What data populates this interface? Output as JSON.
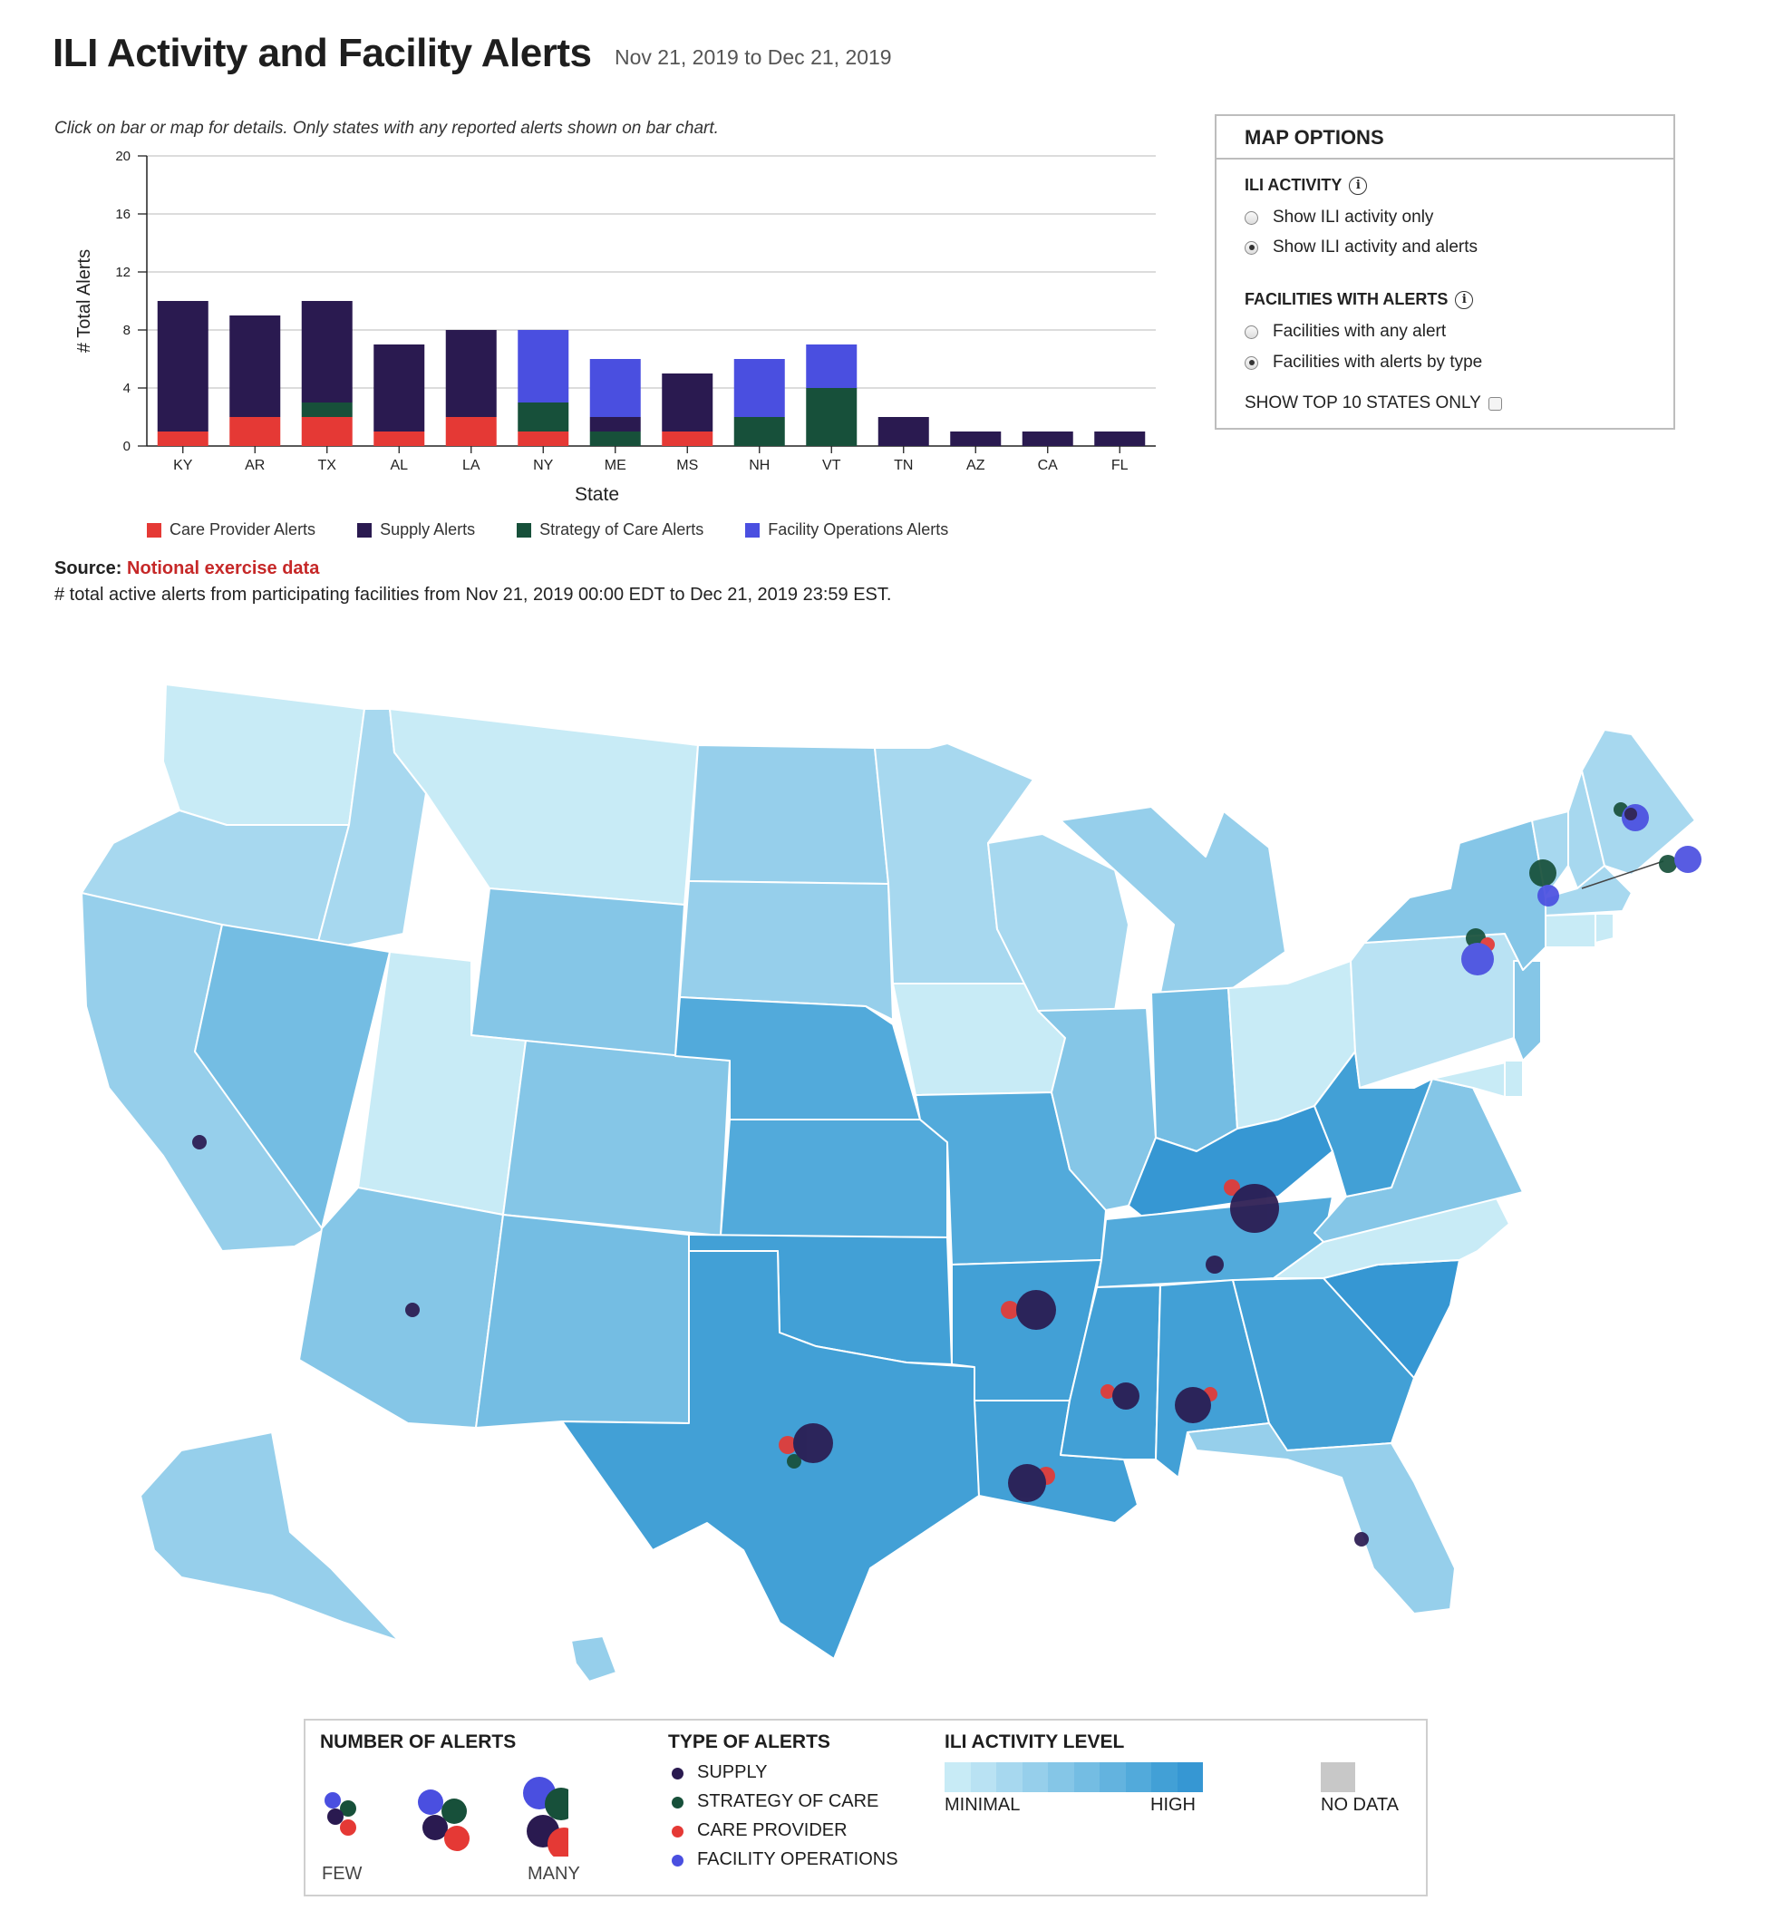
{
  "header": {
    "title": "ILI Activity and Facility Alerts",
    "date_range": "Nov 21, 2019 to Dec 21, 2019"
  },
  "instructions": "Click on bar or map for details. Only states with any reported alerts shown on bar chart.",
  "colors": {
    "care_provider": "#e53935",
    "supply": "#2a1a50",
    "strategy": "#17503a",
    "facility_ops": "#4a4fe0",
    "ili_scale": [
      "#c8ebf6",
      "#b9e2f3",
      "#a7d8ef",
      "#96cfeb",
      "#85c6e7",
      "#74bde3",
      "#63b3df",
      "#52aadb",
      "#42a0d6",
      "#3697d3"
    ],
    "no_data": "#c8c8c8",
    "source_link": "#c62828"
  },
  "chart_data": {
    "type": "bar",
    "stacked": true,
    "categories": [
      "KY",
      "AR",
      "TX",
      "AL",
      "LA",
      "NY",
      "ME",
      "MS",
      "NH",
      "VT",
      "TN",
      "AZ",
      "CA",
      "FL"
    ],
    "series": [
      {
        "name": "Care Provider Alerts",
        "key": "care_provider",
        "values": [
          1,
          2,
          2,
          1,
          2,
          1,
          0,
          1,
          0,
          0,
          0,
          0,
          0,
          0
        ]
      },
      {
        "name": "Strategy of Care Alerts",
        "key": "strategy",
        "values": [
          0,
          0,
          1,
          0,
          0,
          2,
          1,
          0,
          2,
          4,
          0,
          0,
          0,
          0
        ]
      },
      {
        "name": "Supply Alerts",
        "key": "supply",
        "values": [
          9,
          7,
          7,
          6,
          6,
          0,
          1,
          4,
          0,
          0,
          2,
          1,
          1,
          1
        ]
      },
      {
        "name": "Facility Operations Alerts",
        "key": "facility_ops",
        "values": [
          0,
          0,
          0,
          0,
          0,
          5,
          4,
          0,
          4,
          3,
          0,
          0,
          0,
          0
        ]
      }
    ],
    "legend_order": [
      "care_provider",
      "supply",
      "strategy",
      "facility_ops"
    ],
    "xlabel": "State",
    "ylabel": "# Total Alerts",
    "ylim": [
      0,
      20
    ],
    "yticks": [
      "0",
      "4",
      "8",
      "12",
      "16",
      "20"
    ],
    "grid": true,
    "legend_placement": "bottom"
  },
  "source": {
    "label": "Source:",
    "link_text": "Notional exercise data"
  },
  "footnote": "# total active alerts from participating facilities from Nov 21, 2019 00:00 EDT to Dec 21, 2019 23:59 EST.",
  "map_options": {
    "title": "MAP OPTIONS",
    "ili_heading": "ILI ACTIVITY",
    "ili_options": [
      {
        "label": "Show ILI activity only",
        "selected": false
      },
      {
        "label": "Show ILI activity and alerts",
        "selected": true
      }
    ],
    "facilities_heading": "FACILITIES WITH ALERTS",
    "facilities_options": [
      {
        "label": "Facilities with any alert",
        "selected": false
      },
      {
        "label": "Facilities with alerts by type",
        "selected": true
      }
    ],
    "top10_label": "SHOW TOP 10 STATES ONLY",
    "top10_checked": false,
    "info_icon": "i"
  },
  "map_legend": {
    "number_heading": "NUMBER OF ALERTS",
    "few_label": "FEW",
    "many_label": "MANY",
    "type_heading": "TYPE OF ALERTS",
    "types": [
      "SUPPLY",
      "STRATEGY OF CARE",
      "CARE PROVIDER",
      "FACILITY OPERATIONS"
    ],
    "ili_heading": "ILI ACTIVITY LEVEL",
    "minimal_label": "MINIMAL",
    "high_label": "HIGH",
    "no_data_label": "NO DATA"
  }
}
